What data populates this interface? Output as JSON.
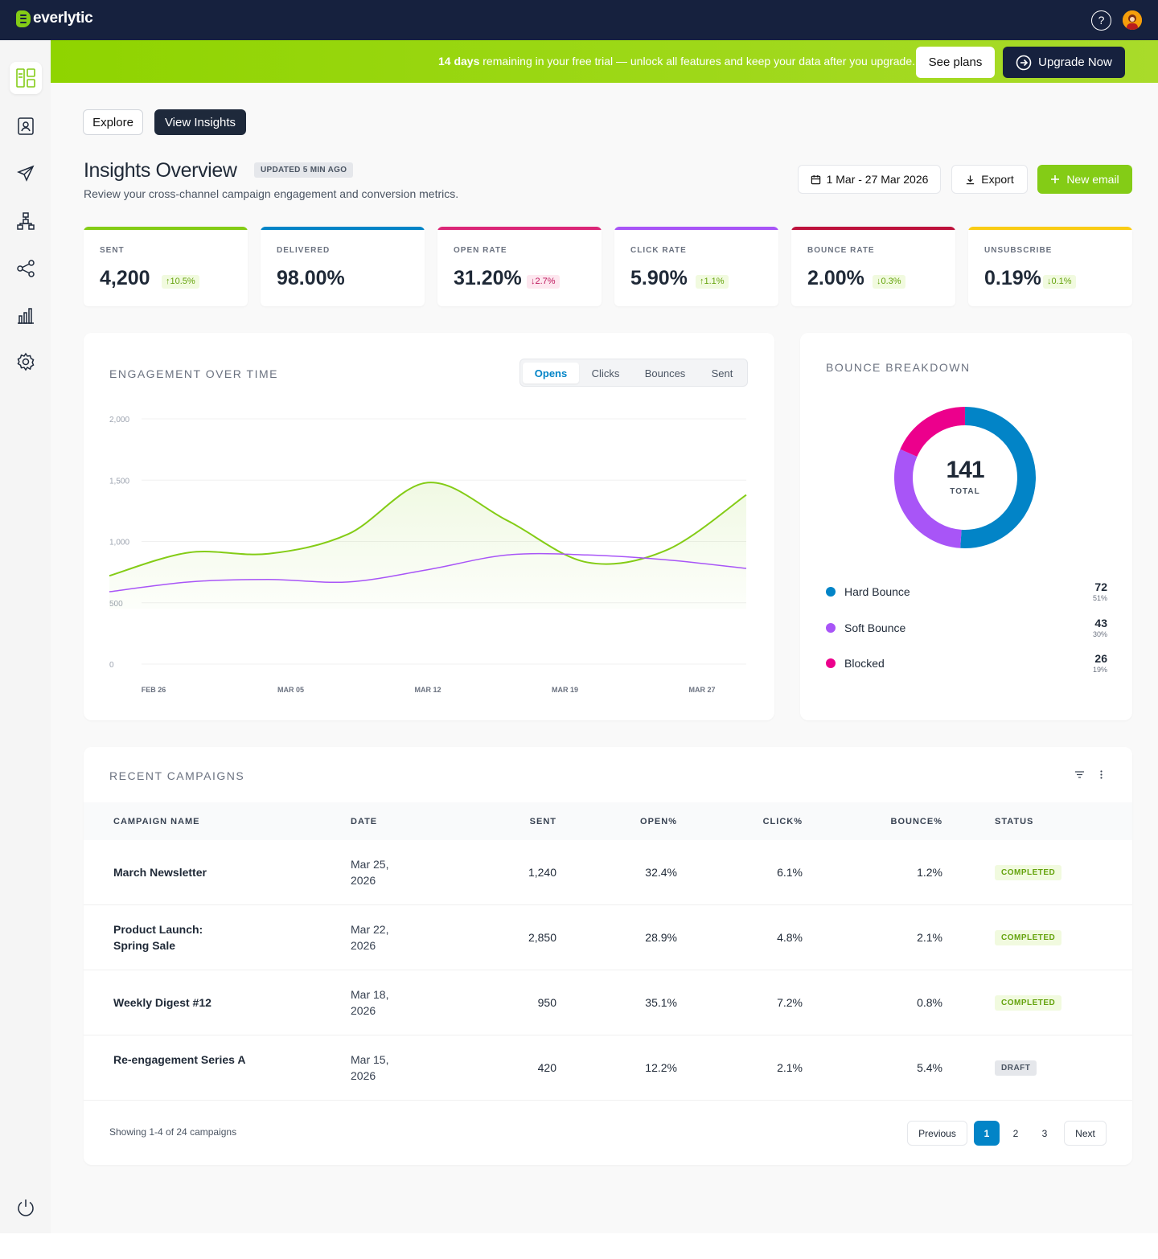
{
  "app": {
    "logo_text": "everlytic"
  },
  "header": {
    "help_label": "?"
  },
  "banner": {
    "days": "14 days",
    "text": " remaining in your free trial — unlock all features and keep your data after you upgrade.",
    "see_plans": "See plans",
    "upgrade": "Upgrade Now"
  },
  "tabs": {
    "explore": "Explore",
    "insights": "View Insights"
  },
  "page": {
    "title": "Insights Overview",
    "updated": "UPDATED 5 MIN AGO",
    "subtitle": "Review your cross-channel campaign engagement and conversion metrics.",
    "date_range": "1 Mar - 27 Mar 2026",
    "export": "Export",
    "new_email": "New email"
  },
  "kpis": [
    {
      "label": "SENT",
      "value": "4,200",
      "delta": "↑10.5%",
      "color": "#84cc16"
    },
    {
      "label": "DELIVERED",
      "value": "98.00%",
      "delta": "",
      "color": "#0284c7"
    },
    {
      "label": "OPEN RATE",
      "value": "31.20%",
      "delta": "↓2.7%",
      "color": "#db2777"
    },
    {
      "label": "CLICK RATE",
      "value": "5.90%",
      "delta": "↑1.1%",
      "color": "#a855f7"
    },
    {
      "label": "BOUNCE RATE",
      "value": "2.00%",
      "delta": "↓0.3%",
      "color": "#be123c"
    },
    {
      "label": "UNSUBSCRIBE",
      "value": "0.19%",
      "delta": "↓0.1%",
      "color": "#facc15"
    }
  ],
  "engagement": {
    "title": "ENGAGEMENT OVER TIME",
    "segments": [
      "Opens",
      "Clicks",
      "Bounces",
      "Sent"
    ]
  },
  "chart_data": [
    {
      "type": "line",
      "title": "ENGAGEMENT OVER TIME",
      "y_ticks": [
        "2,000",
        "1,500",
        "1,000",
        "500",
        "0"
      ],
      "x_ticks": [
        "FEB 26",
        "MAR 05",
        "MAR 12",
        "MAR 19",
        "MAR 27"
      ],
      "ylim": [
        0,
        2000
      ],
      "x": [
        0,
        1,
        2,
        3,
        4,
        5,
        6,
        7,
        8
      ],
      "series": [
        {
          "name": "Opens",
          "color": "#84cc16",
          "values": [
            720,
            910,
            900,
            1060,
            1480,
            1170,
            830,
            930,
            1380
          ]
        },
        {
          "name": "Clicks",
          "color": "#a855f7",
          "values": [
            590,
            670,
            690,
            670,
            770,
            890,
            890,
            850,
            780
          ]
        }
      ]
    },
    {
      "type": "pie",
      "title": "BOUNCE BREAKDOWN",
      "total": "141",
      "total_label": "TOTAL",
      "slices": [
        {
          "name": "Hard Bounce",
          "count": "72",
          "value": 72,
          "pct": "51%",
          "color": "#0284c7"
        },
        {
          "name": "Soft Bounce",
          "count": "43",
          "value": 43,
          "pct": "30%",
          "color": "#a855f7"
        },
        {
          "name": "Blocked",
          "count": "26",
          "value": 26,
          "pct": "19%",
          "color": "#ec008c"
        }
      ]
    }
  ],
  "campaigns": {
    "title": "RECENT CAMPAIGNS",
    "headers": [
      "CAMPAIGN NAME",
      "DATE",
      "SENT",
      "OPEN%",
      "CLICK%",
      "BOUNCE%",
      "STATUS"
    ],
    "rows": [
      {
        "name": "March Newsletter",
        "date": "Mar 25, 2026",
        "sent": "1,240",
        "open": "32.4%",
        "click": "6.1%",
        "bounce": "1.2%",
        "status": "COMPLETED"
      },
      {
        "name": "Product Launch: Spring Sale",
        "date": "Mar 22, 2026",
        "sent": "2,850",
        "open": "28.9%",
        "click": "4.8%",
        "bounce": "2.1%",
        "status": "COMPLETED"
      },
      {
        "name": "Weekly Digest #12",
        "date": "Mar 18, 2026",
        "sent": "950",
        "open": "35.1%",
        "click": "7.2%",
        "bounce": "0.8%",
        "status": "COMPLETED"
      },
      {
        "name": "Re-engagement Series A",
        "date": "Mar 15, 2026",
        "sent": "420",
        "open": "12.2%",
        "click": "2.1%",
        "bounce": "5.4%",
        "status": "DRAFT"
      }
    ],
    "showing": "Showing 1-4 of 24 campaigns",
    "pagination": {
      "previous": "Previous",
      "pages": [
        "1",
        "2",
        "3"
      ],
      "next": "Next"
    }
  }
}
